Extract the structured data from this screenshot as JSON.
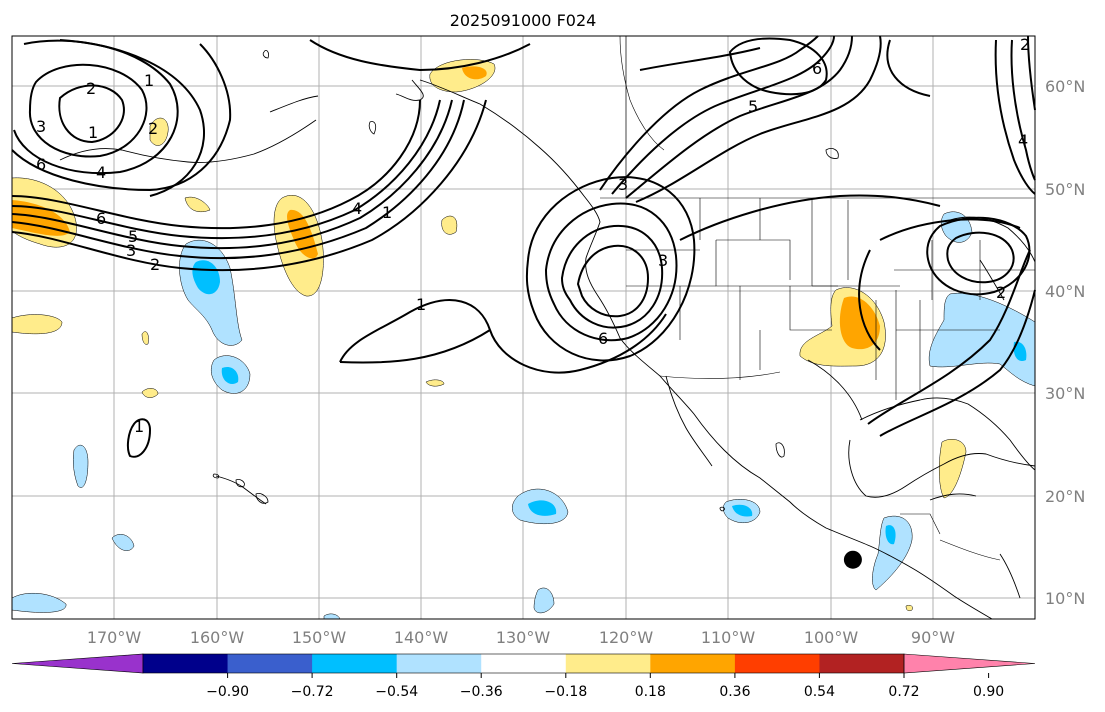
{
  "figure": {
    "title": "2025091000 F024",
    "lat_labels": [
      "60°N",
      "50°N",
      "40°N",
      "30°N",
      "20°N",
      "10°N"
    ],
    "lon_labels": [
      "170°W",
      "160°W",
      "150°W",
      "140°W",
      "130°W",
      "120°W",
      "110°W",
      "100°W",
      "90°W"
    ]
  },
  "map": {
    "extent": {
      "lon_min": -180,
      "lon_max": -80,
      "lat_min": 8,
      "lat_max": 65
    },
    "storm_marker": {
      "lat": 13.8,
      "lon": -97.8,
      "color": "#000000"
    },
    "contour_labels": [
      "2",
      "3",
      "1",
      "6",
      "4",
      "2",
      "1",
      "6",
      "5",
      "3",
      "2",
      "4",
      "1",
      "1",
      "3",
      "3",
      "6",
      "1",
      "5",
      "6",
      "4",
      "2",
      "2"
    ]
  },
  "colorbar": {
    "colors": [
      "#9932cc",
      "#00008b",
      "#3a5fcd",
      "#00bfff",
      "#b0e2ff",
      "#ffffff",
      "#ffec8b",
      "#ffa500",
      "#ff3e00",
      "#b22222",
      "#ff82ab"
    ],
    "tick_labels": [
      "−0.90",
      "−0.72",
      "−0.54",
      "−0.36",
      "−0.18",
      "0.18",
      "0.36",
      "0.54",
      "0.72",
      "0.90"
    ]
  }
}
